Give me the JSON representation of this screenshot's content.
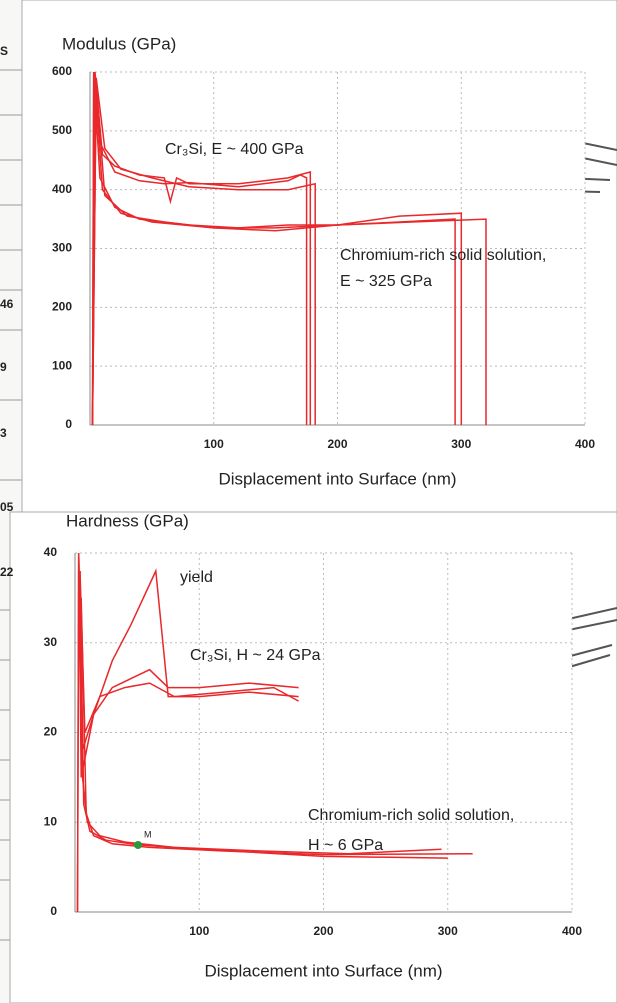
{
  "background_table": {
    "cells": [
      "S",
      "46",
      "9",
      "3",
      "05",
      "22"
    ]
  },
  "chart_data": [
    {
      "type": "line",
      "title": "Modulus (GPa)",
      "x_label": "Displacement into Surface (nm)",
      "xlim": [
        0,
        400
      ],
      "ylim": [
        0,
        600
      ],
      "xticks": [
        100,
        200,
        300,
        400
      ],
      "yticks": [
        0,
        100,
        200,
        300,
        400,
        500,
        600
      ],
      "grid": true,
      "annotations": [
        "Cr₃Si, E ~ 400 GPa",
        "Chromium-rich solid solution,",
        "E ~ 325 GPa"
      ],
      "series": [
        {
          "color": "#e8282b",
          "x": [
            2,
            3,
            8,
            20,
            40,
            60,
            80,
            120,
            160,
            170,
            175,
            175
          ],
          "values": [
            0,
            600,
            480,
            430,
            415,
            410,
            412,
            405,
            415,
            425,
            420,
            0
          ]
        },
        {
          "color": "#e8282b",
          "x": [
            2,
            4,
            10,
            20,
            40,
            60,
            65,
            70,
            80,
            120,
            160,
            178,
            178
          ],
          "values": [
            0,
            600,
            460,
            440,
            425,
            420,
            380,
            420,
            410,
            410,
            420,
            430,
            0
          ]
        },
        {
          "color": "#e8282b",
          "x": [
            2,
            5,
            12,
            25,
            50,
            80,
            120,
            160,
            182,
            182
          ],
          "values": [
            0,
            590,
            470,
            435,
            420,
            405,
            400,
            400,
            410,
            0
          ]
        },
        {
          "color": "#e8282b",
          "x": [
            2,
            3,
            8,
            20,
            40,
            80,
            120,
            160,
            200,
            250,
            295,
            295
          ],
          "values": [
            0,
            600,
            420,
            370,
            350,
            340,
            335,
            340,
            340,
            345,
            350,
            0
          ]
        },
        {
          "color": "#e8282b",
          "x": [
            2,
            4,
            10,
            25,
            50,
            100,
            150,
            200,
            250,
            300,
            300
          ],
          "values": [
            0,
            590,
            400,
            360,
            345,
            335,
            330,
            340,
            355,
            360,
            0
          ]
        },
        {
          "color": "#e8282b",
          "x": [
            2,
            5,
            12,
            30,
            60,
            100,
            150,
            200,
            260,
            320,
            320
          ],
          "values": [
            0,
            580,
            390,
            355,
            345,
            335,
            335,
            340,
            345,
            350,
            0
          ]
        }
      ]
    },
    {
      "type": "line",
      "title": "Hardness (GPa)",
      "x_label": "Displacement into Surface (nm)",
      "xlim": [
        0,
        400
      ],
      "ylim": [
        0,
        40
      ],
      "xticks": [
        100,
        200,
        300,
        400
      ],
      "yticks": [
        0,
        10,
        20,
        30,
        40
      ],
      "grid": true,
      "annotations": [
        "yield",
        "Cr₃Si, H ~ 24 GPa",
        "Chromium-rich solid solution,",
        "H ~ 6 GPa",
        "M"
      ],
      "series": [
        {
          "color": "#e8282b",
          "x": [
            2,
            3,
            5,
            15,
            30,
            45,
            65,
            75,
            100,
            140,
            180
          ],
          "values": [
            0,
            40,
            15,
            22,
            28,
            32,
            38,
            24,
            24,
            24.5,
            24
          ]
        },
        {
          "color": "#e8282b",
          "x": [
            3,
            6,
            15,
            30,
            45,
            60,
            75,
            100,
            140,
            180
          ],
          "values": [
            40,
            18,
            22,
            25,
            26,
            27,
            25,
            25,
            25.5,
            25
          ]
        },
        {
          "color": "#e8282b",
          "x": [
            4,
            8,
            20,
            40,
            60,
            80,
            120,
            160,
            180
          ],
          "values": [
            38,
            20,
            24,
            25,
            25.5,
            24,
            24.5,
            25,
            23.5
          ]
        },
        {
          "color": "#e8282b",
          "x": [
            2,
            3,
            6,
            10,
            20,
            40,
            80,
            150,
            220,
            295
          ],
          "values": [
            0,
            40,
            15,
            10,
            8.5,
            7.8,
            7.2,
            6.8,
            6.5,
            7
          ]
        },
        {
          "color": "#e8282b",
          "x": [
            4,
            7,
            12,
            25,
            50,
            100,
            200,
            300
          ],
          "values": [
            38,
            12,
            9,
            8,
            7.5,
            7,
            6.2,
            6
          ]
        },
        {
          "color": "#e8282b",
          "x": [
            5,
            9,
            15,
            30,
            60,
            120,
            200,
            320
          ],
          "values": [
            35,
            11,
            8.5,
            7.6,
            7.2,
            6.8,
            6.4,
            6.5
          ]
        }
      ]
    }
  ]
}
